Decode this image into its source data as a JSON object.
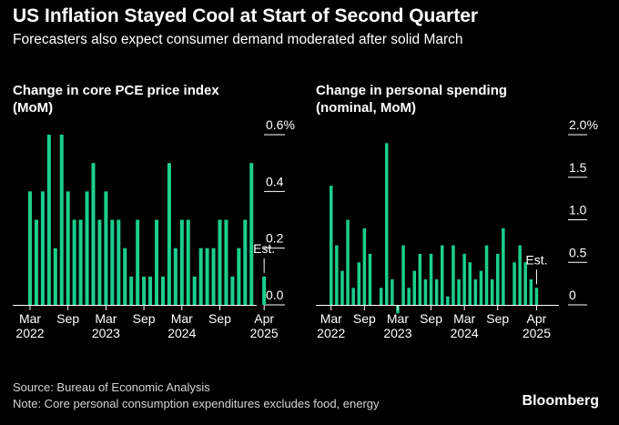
{
  "header": {
    "title": "US Inflation Stayed Cool at Start of Second Quarter",
    "subtitle": "Forecasters also expect consumer demand moderated after solid March"
  },
  "footer": {
    "source": "Source: Bureau of Economic Analysis",
    "note": "Note: Core personal consumption expenditures excludes food, energy",
    "brand": "Bloomberg"
  },
  "colors": {
    "bar": "#1ccf8c",
    "background": "#000000",
    "grid": "#ffffff",
    "text": "#ffffff"
  },
  "chart_data": [
    {
      "type": "bar",
      "title_lines": [
        "Change in core PCE price index",
        "(MoM)"
      ],
      "y_unit": "%",
      "ylim": [
        0,
        0.6
      ],
      "yticks": [
        0,
        0.2,
        0.4,
        0.6
      ],
      "ytick_labels": [
        "0.0",
        "0.2",
        "0.4",
        "0.6%"
      ],
      "x_tick_labels": [
        {
          "month": "Mar",
          "year": "2022",
          "index": 0
        },
        {
          "month": "Sep",
          "year": "",
          "index": 6
        },
        {
          "month": "Mar",
          "year": "2023",
          "index": 12
        },
        {
          "month": "Sep",
          "year": "",
          "index": 18
        },
        {
          "month": "Mar",
          "year": "2024",
          "index": 24
        },
        {
          "month": "Sep",
          "year": "",
          "index": 30
        },
        {
          "month": "Apr",
          "year": "2025",
          "index": 37
        }
      ],
      "annotation": {
        "text": "Est.",
        "index": 37
      },
      "months": [
        "2022-03",
        "2022-04",
        "2022-05",
        "2022-06",
        "2022-07",
        "2022-08",
        "2022-09",
        "2022-10",
        "2022-11",
        "2022-12",
        "2023-01",
        "2023-02",
        "2023-03",
        "2023-04",
        "2023-05",
        "2023-06",
        "2023-07",
        "2023-08",
        "2023-09",
        "2023-10",
        "2023-11",
        "2023-12",
        "2024-01",
        "2024-02",
        "2024-03",
        "2024-04",
        "2024-05",
        "2024-06",
        "2024-07",
        "2024-08",
        "2024-09",
        "2024-10",
        "2024-11",
        "2024-12",
        "2025-01",
        "2025-02",
        "2025-03",
        "2025-04"
      ],
      "values": [
        0.4,
        0.3,
        0.4,
        0.6,
        0.2,
        0.6,
        0.4,
        0.3,
        0.3,
        0.4,
        0.5,
        0.3,
        0.4,
        0.3,
        0.3,
        0.2,
        0.1,
        0.3,
        0.1,
        0.1,
        0.3,
        0.1,
        0.5,
        0.2,
        0.3,
        0.3,
        0.1,
        0.2,
        0.2,
        0.2,
        0.3,
        0.3,
        0.1,
        0.2,
        0.3,
        0.5,
        0.0,
        0.1
      ]
    },
    {
      "type": "bar",
      "title_lines": [
        "Change in personal spending",
        "(nominal, MoM)"
      ],
      "y_unit": "%",
      "ylim": [
        -0.2,
        2.0
      ],
      "yticks": [
        0,
        0.5,
        1.0,
        1.5,
        2.0
      ],
      "ytick_labels": [
        "0",
        "0.5",
        "1.0",
        "1.5",
        "2.0%"
      ],
      "x_tick_labels": [
        {
          "month": "Mar",
          "year": "2022",
          "index": 0
        },
        {
          "month": "Sep",
          "year": "",
          "index": 6
        },
        {
          "month": "Mar",
          "year": "2023",
          "index": 12
        },
        {
          "month": "Sep",
          "year": "",
          "index": 18
        },
        {
          "month": "Mar",
          "year": "2024",
          "index": 24
        },
        {
          "month": "Sep",
          "year": "",
          "index": 30
        },
        {
          "month": "Apr",
          "year": "2025",
          "index": 37
        }
      ],
      "annotation": {
        "text": "Est.",
        "index": 37
      },
      "months": [
        "2022-03",
        "2022-04",
        "2022-05",
        "2022-06",
        "2022-07",
        "2022-08",
        "2022-09",
        "2022-10",
        "2022-11",
        "2022-12",
        "2023-01",
        "2023-02",
        "2023-03",
        "2023-04",
        "2023-05",
        "2023-06",
        "2023-07",
        "2023-08",
        "2023-09",
        "2023-10",
        "2023-11",
        "2023-12",
        "2024-01",
        "2024-02",
        "2024-03",
        "2024-04",
        "2024-05",
        "2024-06",
        "2024-07",
        "2024-08",
        "2024-09",
        "2024-10",
        "2024-11",
        "2024-12",
        "2025-01",
        "2025-02",
        "2025-03",
        "2025-04"
      ],
      "values": [
        1.4,
        0.7,
        0.4,
        1.0,
        0.2,
        0.5,
        0.9,
        0.6,
        0.0,
        0.2,
        1.9,
        0.3,
        -0.1,
        0.7,
        0.2,
        0.4,
        0.6,
        0.3,
        0.6,
        0.3,
        0.7,
        0.1,
        0.7,
        0.3,
        0.6,
        0.5,
        0.3,
        0.4,
        0.7,
        0.3,
        0.6,
        0.9,
        0.0,
        0.5,
        0.7,
        0.5,
        0.3,
        0.2
      ]
    }
  ]
}
